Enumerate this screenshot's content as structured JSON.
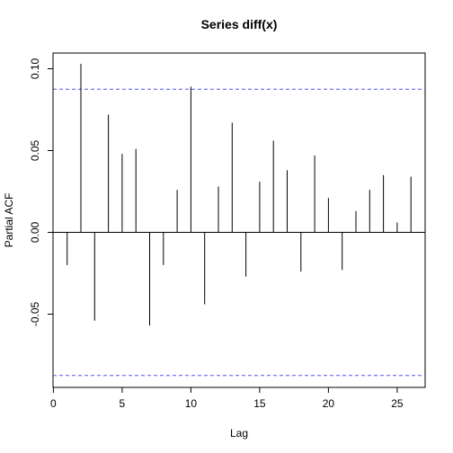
{
  "chart_data": {
    "type": "bar",
    "title": "Series  diff(x)",
    "xlabel": "Lag",
    "ylabel": "Partial ACF",
    "xlim": [
      0,
      27
    ],
    "ylim": [
      -0.095,
      0.11
    ],
    "x_ticks": [
      0,
      5,
      10,
      15,
      20,
      25
    ],
    "y_ticks": [
      -0.05,
      0.0,
      0.05,
      0.1
    ],
    "y_tick_labels": [
      "-0.05",
      "0.00",
      "0.05",
      "0.10"
    ],
    "lags": [
      1,
      2,
      3,
      4,
      5,
      6,
      7,
      8,
      9,
      10,
      11,
      12,
      13,
      14,
      15,
      16,
      17,
      18,
      19,
      20,
      21,
      22,
      23,
      24,
      25,
      26
    ],
    "values": [
      -0.02,
      0.103,
      -0.054,
      0.072,
      0.048,
      0.051,
      -0.057,
      -0.02,
      0.026,
      0.089,
      -0.044,
      0.028,
      0.067,
      -0.027,
      0.031,
      0.056,
      0.038,
      -0.024,
      0.047,
      0.021,
      -0.023,
      0.013,
      0.026,
      0.035,
      0.006,
      0.034
    ],
    "confidence_bound": 0.0875,
    "confidence_color": "#5555ee",
    "zero_line": true,
    "grid": false
  }
}
